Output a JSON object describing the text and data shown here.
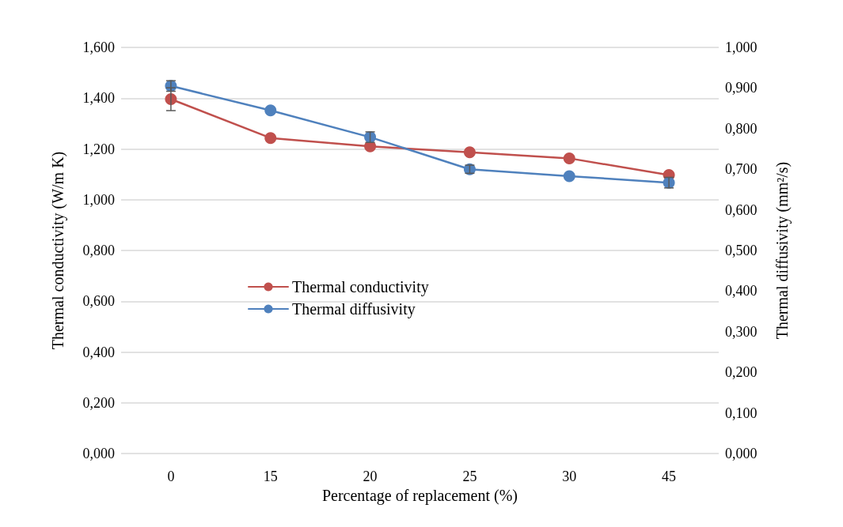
{
  "chart_data": {
    "type": "line",
    "xlabel": "Percentage of replacement (%)",
    "ylabel": "Thermal conductivity (W/m K)",
    "y2label": "Thermal diffusivity (mm²/s)",
    "categories": [
      "0",
      "15",
      "20",
      "25",
      "30",
      "45"
    ],
    "series": [
      {
        "name": "Thermal conductivity",
        "color": "#c0504d",
        "values": [
          1.396,
          1.243,
          1.21,
          1.187,
          1.163,
          1.097
        ],
        "errors": [
          0.045,
          null,
          null,
          null,
          null,
          null
        ]
      },
      {
        "name": "Thermal diffusivity",
        "color": "#4f81bd",
        "axis": "y2",
        "values": [
          0.905,
          0.845,
          0.779,
          0.7,
          0.683,
          0.667
        ],
        "errors": [
          0.013,
          null,
          0.013,
          0.01,
          null,
          0.013
        ]
      }
    ],
    "ylim": [
      0,
      1.6
    ],
    "yticks": [
      {
        "value": 0,
        "label": "0,000"
      },
      {
        "value": 0.2,
        "label": "0,200"
      },
      {
        "value": 0.4,
        "label": "0,400"
      },
      {
        "value": 0.6,
        "label": "0,600"
      },
      {
        "value": 0.8,
        "label": "0,800"
      },
      {
        "value": 1,
        "label": "1,000"
      },
      {
        "value": 1.2,
        "label": "1,200"
      },
      {
        "value": 1.4,
        "label": "1,400"
      },
      {
        "value": 1.6,
        "label": "1,600"
      }
    ],
    "y2lim": [
      0,
      1
    ],
    "y2ticks": [
      {
        "value": 0,
        "label": "0,000"
      },
      {
        "value": 0.1,
        "label": "0,100"
      },
      {
        "value": 0.2,
        "label": "0,200"
      },
      {
        "value": 0.3,
        "label": "0,300"
      },
      {
        "value": 0.4,
        "label": "0,400"
      },
      {
        "value": 0.5,
        "label": "0,500"
      },
      {
        "value": 0.6,
        "label": "0,600"
      },
      {
        "value": 0.7,
        "label": "0,700"
      },
      {
        "value": 0.8,
        "label": "0,800"
      },
      {
        "value": 0.9,
        "label": "0,900"
      },
      {
        "value": 1,
        "label": "1,000"
      }
    ],
    "grid": "y",
    "legend": "center left",
    "marker": "circle",
    "line_style": "solid"
  }
}
